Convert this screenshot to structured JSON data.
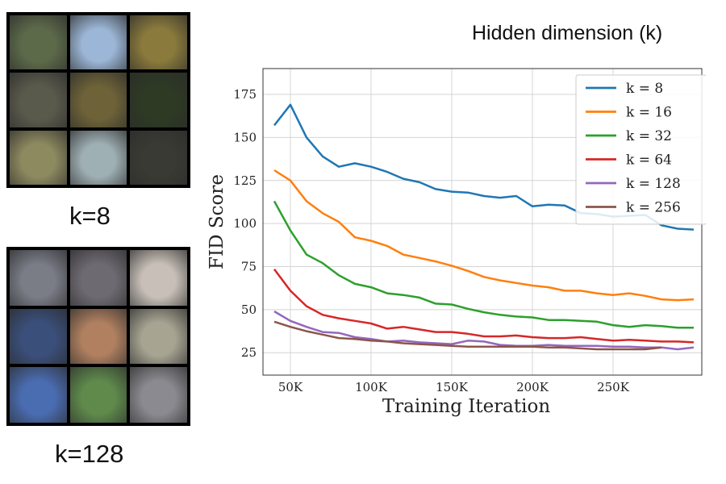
{
  "captions": {
    "top": "k=8",
    "bottom": "k=128"
  },
  "legend_title": "Hidden dimension (k)",
  "sample_grids": {
    "top": [
      "#5d6a4a",
      "#9bb6d6",
      "#8a7a3c",
      "#5a5a4c",
      "#6d6238",
      "#2e3a24",
      "#8e8a60",
      "#9fb0b4",
      "#3a3a34"
    ],
    "bottom": [
      "#7a7c86",
      "#6e6a72",
      "#c8c0b8",
      "#3a4f7a",
      "#b08060",
      "#a7a492",
      "#4a6cb0",
      "#5f8a4c",
      "#8a8a90"
    ]
  },
  "chart_data": {
    "type": "line",
    "xlabel": "Training Iteration",
    "ylabel": "FID Score",
    "xlim": [
      33000,
      305000
    ],
    "ylim": [
      12,
      190
    ],
    "xticks": [
      50000,
      100000,
      150000,
      200000,
      250000
    ],
    "xtick_labels": [
      "50K",
      "100K",
      "150K",
      "200K",
      "250K"
    ],
    "yticks": [
      25,
      50,
      75,
      100,
      125,
      150,
      175
    ],
    "ytick_labels": [
      "25",
      "50",
      "75",
      "100",
      "125",
      "150",
      "175"
    ],
    "grid": true,
    "legend_position": "top-right",
    "series": [
      {
        "name": "k = 8",
        "color": "#1f77b4",
        "x": [
          40000,
          50000,
          60000,
          70000,
          80000,
          90000,
          100000,
          110000,
          120000,
          130000,
          140000,
          150000,
          160000,
          170000,
          180000,
          190000,
          200000,
          210000,
          220000,
          230000,
          240000,
          250000,
          260000,
          270000,
          280000,
          290000,
          300000
        ],
        "y": [
          157,
          169,
          150,
          139,
          133,
          135,
          133,
          130,
          126,
          124,
          120,
          118.5,
          118,
          116,
          115,
          116,
          110,
          111,
          110.5,
          106,
          105.5,
          104,
          104.5,
          105,
          99,
          97,
          96.5
        ]
      },
      {
        "name": "k = 16",
        "color": "#ff7f0e",
        "x": [
          40000,
          50000,
          60000,
          70000,
          80000,
          90000,
          100000,
          110000,
          120000,
          130000,
          140000,
          150000,
          160000,
          170000,
          180000,
          190000,
          200000,
          210000,
          220000,
          230000,
          240000,
          250000,
          260000,
          270000,
          280000,
          290000,
          300000
        ],
        "y": [
          131,
          125,
          113,
          106,
          101,
          92,
          90,
          87,
          82,
          80,
          78,
          75.5,
          72.5,
          69,
          67,
          65.5,
          64,
          63,
          61,
          61,
          59.5,
          58.5,
          59.5,
          58,
          56,
          55.5,
          56
        ]
      },
      {
        "name": "k = 32",
        "color": "#2ca02c",
        "x": [
          40000,
          50000,
          60000,
          70000,
          80000,
          90000,
          100000,
          110000,
          120000,
          130000,
          140000,
          150000,
          160000,
          170000,
          180000,
          190000,
          200000,
          210000,
          220000,
          230000,
          240000,
          250000,
          260000,
          270000,
          280000,
          290000,
          300000
        ],
        "y": [
          113,
          96,
          82,
          77,
          70,
          65,
          63,
          59.5,
          58.5,
          57,
          53.5,
          53,
          50.5,
          48.5,
          47,
          46,
          45.5,
          44,
          44,
          43.5,
          43,
          41,
          40,
          41,
          40.5,
          39.5,
          39.5
        ]
      },
      {
        "name": "k = 64",
        "color": "#d62728",
        "x": [
          40000,
          50000,
          60000,
          70000,
          80000,
          90000,
          100000,
          110000,
          120000,
          130000,
          140000,
          150000,
          160000,
          170000,
          180000,
          190000,
          200000,
          210000,
          220000,
          230000,
          240000,
          250000,
          260000,
          270000,
          280000,
          290000,
          300000
        ],
        "y": [
          73.5,
          61,
          52,
          47,
          45,
          43.5,
          42,
          39,
          40,
          38.5,
          37,
          37,
          36,
          34.5,
          34.5,
          35,
          34,
          33.5,
          33.5,
          34,
          33,
          32,
          32.5,
          32,
          31.5,
          31.5,
          31
        ]
      },
      {
        "name": "k = 128",
        "color": "#9467bd",
        "x": [
          40000,
          50000,
          60000,
          70000,
          80000,
          90000,
          100000,
          110000,
          120000,
          130000,
          140000,
          150000,
          160000,
          170000,
          180000,
          190000,
          200000,
          210000,
          220000,
          230000,
          240000,
          250000,
          260000,
          270000,
          280000,
          290000,
          300000
        ],
        "y": [
          49,
          43.5,
          40,
          37,
          36.5,
          34,
          33,
          31.5,
          32,
          31,
          30.5,
          30,
          32,
          31.5,
          29.5,
          29,
          29,
          29.5,
          29,
          29,
          29,
          28.5,
          28.5,
          28,
          28,
          27,
          28
        ]
      },
      {
        "name": "k = 256",
        "color": "#8c564b",
        "x": [
          40000,
          50000,
          60000,
          70000,
          80000,
          90000,
          100000,
          110000,
          120000,
          130000,
          140000,
          150000,
          160000,
          170000,
          180000,
          190000,
          200000,
          210000,
          220000,
          230000,
          240000,
          250000,
          260000,
          270000,
          280000
        ],
        "y": [
          43,
          40,
          37.5,
          35.5,
          33.5,
          33,
          32,
          31.5,
          30.5,
          30,
          29.5,
          29,
          28.5,
          28.5,
          28.5,
          28.5,
          28.5,
          28,
          28,
          27.5,
          27,
          27,
          27,
          27,
          28
        ]
      }
    ]
  }
}
